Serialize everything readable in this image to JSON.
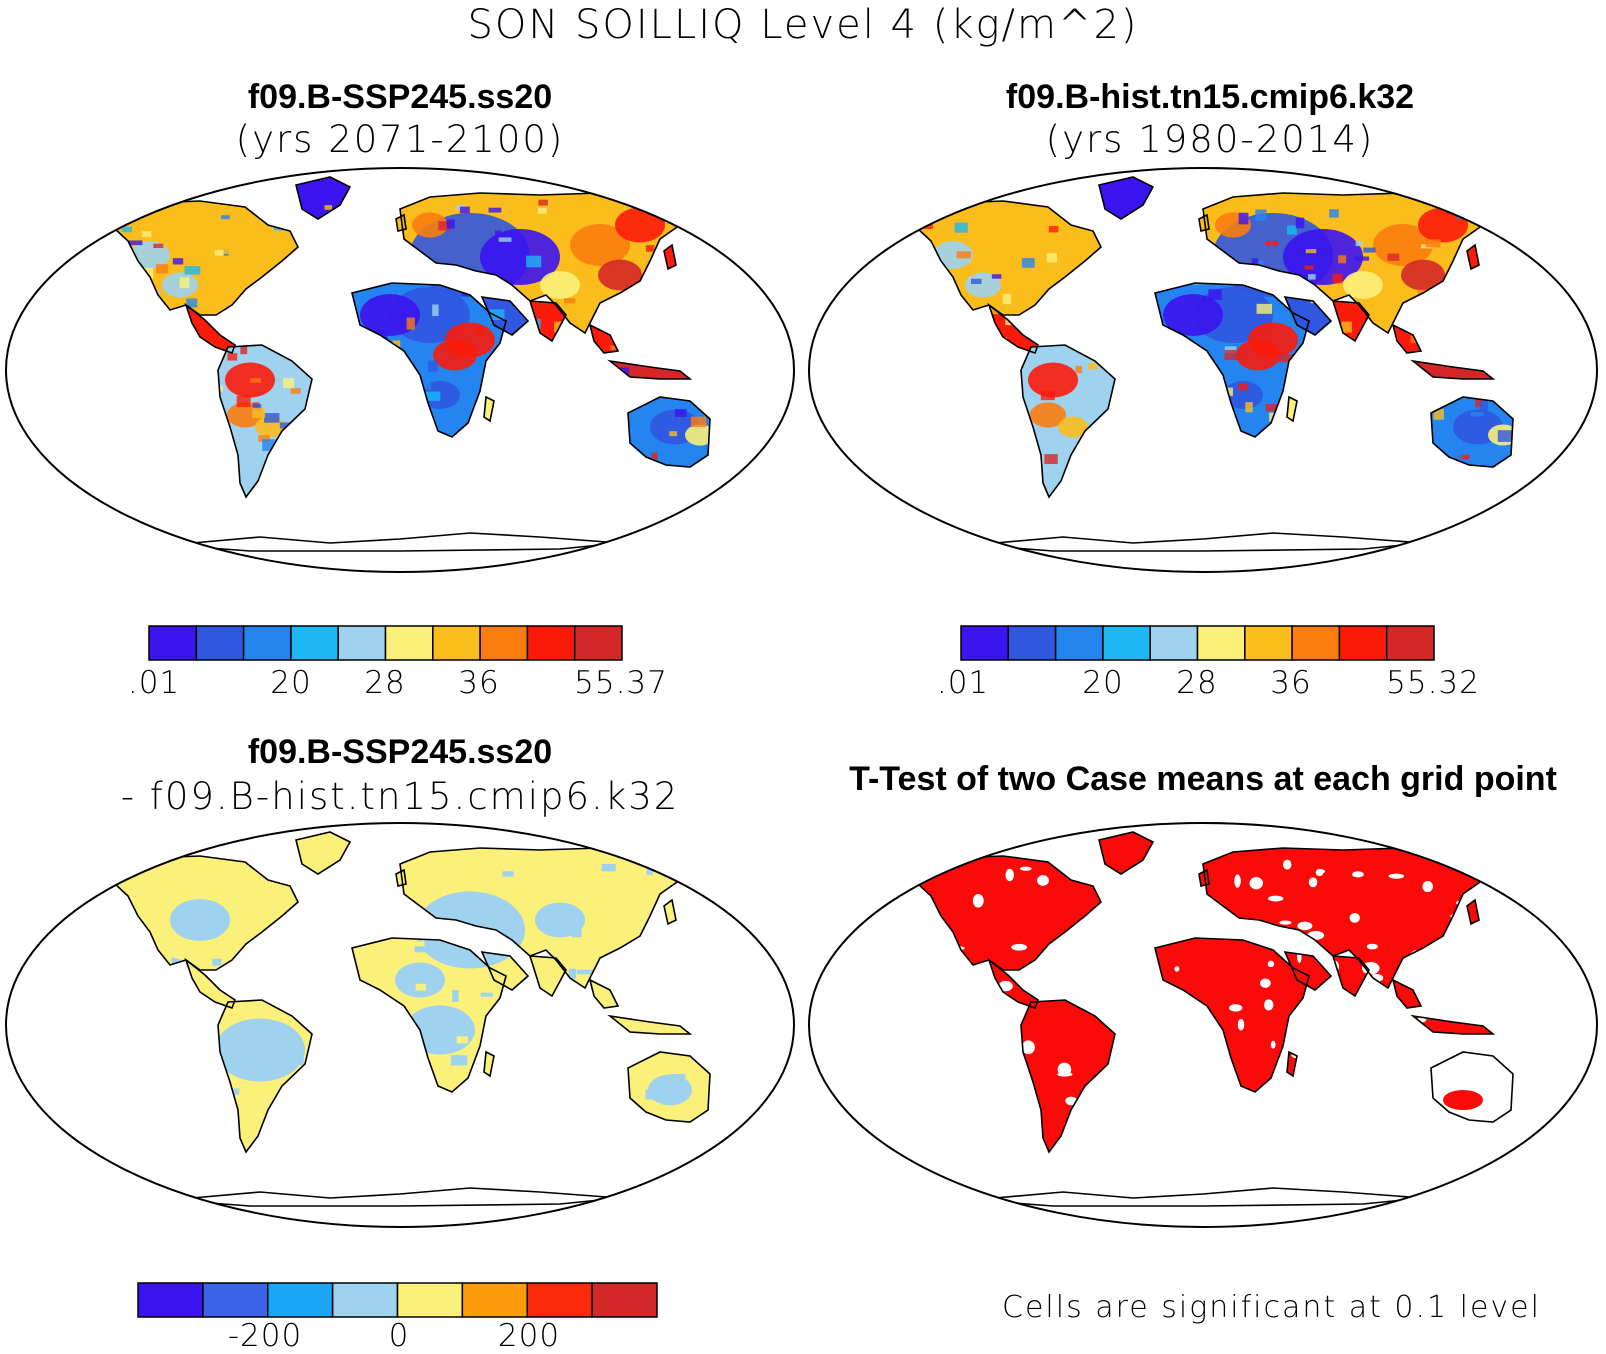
{
  "main_title": "SON SOILLIQ Level 4 (kg/m^2)",
  "panels": {
    "top_left": {
      "title": "f09.B-SSP245.ss20",
      "subtitle": "(yrs 2071-2100)",
      "colorbar_labels": [
        ".01",
        "20",
        "28",
        "36",
        "55.37"
      ]
    },
    "top_right": {
      "title": "f09.B-hist.tn15.cmip6.k32",
      "subtitle": "(yrs 1980-2014)",
      "colorbar_labels": [
        ".01",
        "20",
        "28",
        "36",
        "55.32"
      ]
    },
    "bottom_left": {
      "title": "f09.B-SSP245.ss20",
      "subtitle": "- f09.B-hist.tn15.cmip6.k32",
      "colorbar_labels": [
        "-200",
        "0",
        "200"
      ]
    },
    "bottom_right": {
      "title": "T-Test of two Case means at each grid point",
      "note": "Cells are significant at 0.1 level"
    }
  },
  "colors": {
    "absolute_scale": [
      "#3b14f0",
      "#3057e0",
      "#2585f0",
      "#1bb8f5",
      "#9fd2ef",
      "#fbf07a",
      "#fbbd1c",
      "#fb7d10",
      "#fb1b0a",
      "#d42828"
    ],
    "difference_scale": [
      "#3b14f0",
      "#3b63e8",
      "#1ba6f5",
      "#9fd2ef",
      "#fbf07a",
      "#fb9b0a",
      "#fb2a0a",
      "#d42828"
    ],
    "significance": "#fb0a0a",
    "outline": "#000000"
  }
}
